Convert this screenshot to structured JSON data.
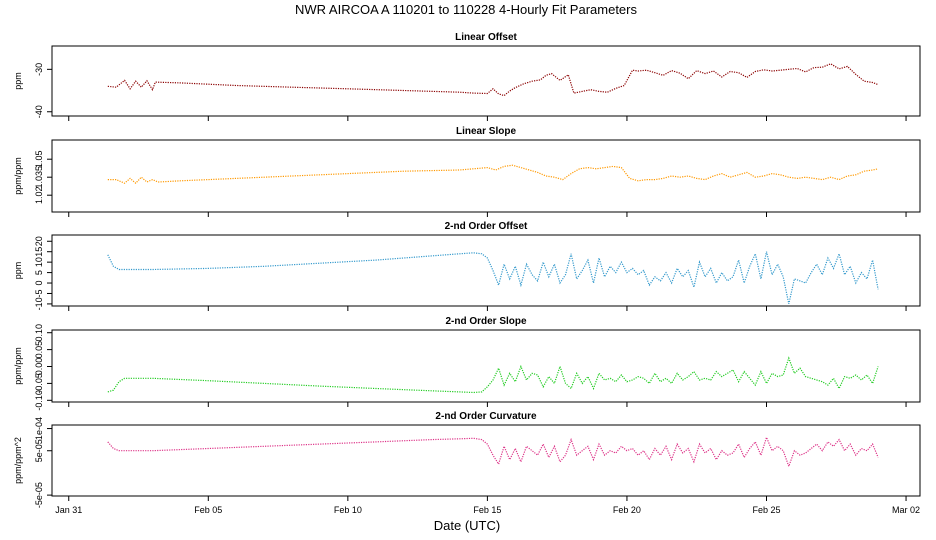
{
  "page": {
    "title": "NWR   AIRCOA A   110201 to 110228   4-Hourly Fit Parameters",
    "xlabel": "Date (UTC)"
  },
  "chart_data": {
    "type": "line",
    "x_axis": {
      "tick_labels": [
        "Jan 31",
        "Feb 05",
        "Feb 10",
        "Feb 15",
        "Feb 20",
        "Feb 25",
        "Mar 02"
      ],
      "tick_days": [
        0,
        5,
        10,
        15,
        20,
        25,
        30
      ],
      "xlim_days": [
        -0.6,
        30.5
      ],
      "unit": "days since Jan 31 00:00 UTC"
    },
    "panels": [
      {
        "title": "Linear Offset",
        "ylabel": "ppm",
        "color": "#8b0000",
        "ylim": [
          -41,
          -24.5
        ],
        "y_ticks": [
          -40,
          -30
        ],
        "y_tick_labels": [
          "-40",
          "-30"
        ],
        "x": [
          1.4,
          1.7,
          2.0,
          2.2,
          2.4,
          2.6,
          2.8,
          3.0,
          3.1,
          4.0,
          6.0,
          8.0,
          10.0,
          12.0,
          14.0,
          14.5,
          15.0,
          15.2,
          15.4,
          15.6,
          15.8,
          16.0,
          16.3,
          16.6,
          16.9,
          17.1,
          17.3,
          17.6,
          17.9,
          18.1,
          18.4,
          18.7,
          19.0,
          19.3,
          19.6,
          19.9,
          20.2,
          20.4,
          20.7,
          21.0,
          21.3,
          21.6,
          21.9,
          22.2,
          22.5,
          22.8,
          23.1,
          23.4,
          23.7,
          24.0,
          24.3,
          24.6,
          24.9,
          25.2,
          25.5,
          25.8,
          26.1,
          26.4,
          26.7,
          27.0,
          27.3,
          27.6,
          27.9,
          28.2,
          28.5,
          28.8,
          29.0
        ],
        "y": [
          -34.0,
          -34.2,
          -32.6,
          -34.6,
          -32.8,
          -34.2,
          -32.7,
          -34.8,
          -33.0,
          -33.2,
          -33.8,
          -34.2,
          -34.6,
          -35.0,
          -35.4,
          -35.6,
          -35.7,
          -34.6,
          -35.8,
          -36.2,
          -35.1,
          -34.3,
          -33.4,
          -32.8,
          -32.5,
          -31.4,
          -31.0,
          -32.6,
          -31.3,
          -35.6,
          -35.2,
          -34.8,
          -35.2,
          -35.4,
          -34.5,
          -33.8,
          -30.2,
          -30.4,
          -30.2,
          -30.8,
          -31.4,
          -30.3,
          -30.9,
          -32.2,
          -30.3,
          -31.0,
          -30.4,
          -31.8,
          -30.5,
          -30.8,
          -31.9,
          -30.5,
          -30.1,
          -30.4,
          -30.2,
          -30.0,
          -29.8,
          -30.6,
          -29.6,
          -29.5,
          -28.7,
          -29.9,
          -29.3,
          -31.2,
          -32.8,
          -33.1,
          -33.6
        ]
      },
      {
        "title": "Linear Slope",
        "ylabel": "ppm/ppm",
        "color": "#ff9900",
        "ylim": [
          1.006,
          1.066
        ],
        "y_ticks": [
          1.02,
          1.035,
          1.05
        ],
        "y_tick_labels": [
          "1.02",
          "1.035",
          "1.05"
        ],
        "x": [
          1.4,
          1.7,
          2.0,
          2.2,
          2.4,
          2.6,
          2.8,
          3.0,
          3.2,
          4.0,
          6.0,
          8.0,
          10.0,
          12.0,
          14.0,
          14.5,
          15.0,
          15.3,
          15.6,
          15.9,
          16.2,
          16.5,
          16.8,
          17.1,
          17.4,
          17.7,
          18.0,
          18.3,
          18.6,
          18.9,
          19.2,
          19.5,
          19.8,
          20.1,
          20.4,
          20.7,
          21.0,
          21.3,
          21.6,
          21.9,
          22.2,
          22.5,
          22.8,
          23.1,
          23.4,
          23.7,
          24.0,
          24.3,
          24.6,
          24.9,
          25.2,
          25.5,
          25.8,
          26.1,
          26.4,
          26.7,
          27.0,
          27.3,
          27.6,
          27.9,
          28.2,
          28.5,
          28.8,
          29.0
        ],
        "y": [
          1.033,
          1.033,
          1.03,
          1.034,
          1.03,
          1.035,
          1.031,
          1.033,
          1.031,
          1.032,
          1.034,
          1.036,
          1.038,
          1.04,
          1.041,
          1.042,
          1.043,
          1.041,
          1.044,
          1.045,
          1.043,
          1.041,
          1.039,
          1.036,
          1.035,
          1.033,
          1.038,
          1.042,
          1.043,
          1.042,
          1.043,
          1.044,
          1.043,
          1.034,
          1.032,
          1.033,
          1.033,
          1.034,
          1.036,
          1.035,
          1.036,
          1.034,
          1.033,
          1.036,
          1.038,
          1.035,
          1.037,
          1.039,
          1.035,
          1.036,
          1.038,
          1.037,
          1.035,
          1.034,
          1.035,
          1.034,
          1.033,
          1.035,
          1.033,
          1.036,
          1.037,
          1.04,
          1.041,
          1.042
        ]
      },
      {
        "title": "2-nd Order Offset",
        "ylabel": "ppm",
        "color": "#3399cc",
        "ylim": [
          -11,
          23
        ],
        "y_ticks": [
          -10,
          -5,
          0,
          5,
          10,
          15,
          20
        ],
        "y_tick_labels": [
          "-10",
          "-5",
          "0",
          "5",
          "10",
          "15",
          "20"
        ],
        "x": [
          1.4,
          1.6,
          1.8,
          2.0,
          3.0,
          5.0,
          7.0,
          9.0,
          11.0,
          13.0,
          14.0,
          14.5,
          14.8,
          15.0,
          15.2,
          15.4,
          15.6,
          15.8,
          16.0,
          16.2,
          16.4,
          16.6,
          16.8,
          17.0,
          17.2,
          17.4,
          17.6,
          17.8,
          18.0,
          18.2,
          18.4,
          18.6,
          18.8,
          19.0,
          19.2,
          19.4,
          19.6,
          19.8,
          20.0,
          20.2,
          20.4,
          20.6,
          20.8,
          21.0,
          21.2,
          21.4,
          21.6,
          21.8,
          22.0,
          22.2,
          22.4,
          22.6,
          22.8,
          23.0,
          23.2,
          23.4,
          23.6,
          23.8,
          24.0,
          24.2,
          24.4,
          24.6,
          24.8,
          25.0,
          25.2,
          25.4,
          25.6,
          25.8,
          26.0,
          26.2,
          26.4,
          26.6,
          26.8,
          27.0,
          27.2,
          27.4,
          27.6,
          27.8,
          28.0,
          28.2,
          28.4,
          28.6,
          28.8,
          29.0
        ],
        "y": [
          13.5,
          8.0,
          6.5,
          6.5,
          6.5,
          7.0,
          8.0,
          9.5,
          11.0,
          13.0,
          14.0,
          14.5,
          14.0,
          12.0,
          6.0,
          -1.0,
          9.0,
          2.0,
          8.0,
          -1.0,
          9.0,
          4.0,
          1.0,
          10.0,
          3.0,
          9.0,
          0.0,
          4.0,
          14.0,
          2.0,
          6.0,
          11.0,
          0.0,
          12.0,
          3.0,
          8.0,
          5.0,
          10.0,
          5.0,
          7.0,
          4.0,
          6.0,
          -1.0,
          3.0,
          1.0,
          5.0,
          0.0,
          7.0,
          3.0,
          6.0,
          -2.0,
          10.0,
          3.0,
          7.0,
          0.0,
          5.0,
          1.0,
          3.0,
          11.0,
          0.0,
          8.0,
          14.0,
          2.0,
          15.0,
          4.0,
          9.0,
          3.0,
          -10.0,
          2.0,
          1.0,
          0.0,
          5.0,
          9.0,
          4.0,
          12.0,
          7.0,
          14.0,
          4.0,
          8.0,
          0.0,
          5.0,
          2.0,
          11.0,
          -3.0
        ]
      },
      {
        "title": "2-nd Order Slope",
        "ylabel": "ppm/ppm",
        "color": "#22cc22",
        "ylim": [
          -0.105,
          0.108
        ],
        "y_ticks": [
          -0.1,
          -0.05,
          0.0,
          0.05,
          0.1
        ],
        "y_tick_labels": [
          "-0.10",
          "-0.05",
          "0.00",
          "0.05",
          "0.10"
        ],
        "x": [
          1.4,
          1.6,
          1.8,
          2.0,
          3.0,
          5.0,
          7.0,
          9.0,
          11.0,
          13.0,
          14.0,
          14.5,
          14.8,
          15.0,
          15.2,
          15.4,
          15.6,
          15.8,
          16.0,
          16.2,
          16.4,
          16.6,
          16.8,
          17.0,
          17.2,
          17.4,
          17.6,
          17.8,
          18.0,
          18.2,
          18.4,
          18.6,
          18.8,
          19.0,
          19.2,
          19.4,
          19.6,
          19.8,
          20.0,
          20.2,
          20.4,
          20.6,
          20.8,
          21.0,
          21.2,
          21.4,
          21.6,
          21.8,
          22.0,
          22.2,
          22.4,
          22.6,
          22.8,
          23.0,
          23.2,
          23.4,
          23.6,
          23.8,
          24.0,
          24.2,
          24.4,
          24.6,
          24.8,
          25.0,
          25.2,
          25.4,
          25.6,
          25.8,
          26.0,
          26.2,
          26.4,
          26.6,
          26.8,
          27.0,
          27.2,
          27.4,
          27.6,
          27.8,
          28.0,
          28.2,
          28.4,
          28.6,
          28.8,
          29.0
        ],
        "y": [
          -0.075,
          -0.07,
          -0.045,
          -0.035,
          -0.035,
          -0.042,
          -0.05,
          -0.058,
          -0.065,
          -0.072,
          -0.075,
          -0.077,
          -0.075,
          -0.06,
          -0.04,
          -0.005,
          -0.055,
          -0.02,
          -0.045,
          0.0,
          -0.04,
          -0.02,
          -0.025,
          -0.06,
          -0.03,
          -0.05,
          0.0,
          -0.05,
          -0.065,
          -0.02,
          -0.05,
          -0.03,
          -0.065,
          -0.02,
          -0.04,
          -0.035,
          -0.045,
          -0.025,
          -0.045,
          -0.04,
          -0.03,
          -0.035,
          -0.05,
          -0.02,
          -0.045,
          -0.035,
          -0.05,
          -0.02,
          -0.04,
          -0.03,
          -0.015,
          -0.04,
          -0.035,
          -0.04,
          -0.015,
          -0.03,
          -0.02,
          -0.01,
          -0.045,
          -0.015,
          -0.035,
          -0.055,
          -0.015,
          -0.05,
          -0.02,
          -0.03,
          -0.025,
          0.025,
          -0.02,
          -0.005,
          -0.03,
          -0.035,
          -0.04,
          -0.045,
          -0.055,
          -0.035,
          -0.065,
          -0.03,
          -0.035,
          -0.025,
          -0.04,
          -0.025,
          -0.05,
          0.0
        ]
      },
      {
        "title": "2-nd Order Curvature",
        "ylabel": "ppm/ppm^2",
        "color": "#dd3388",
        "ylim": [
          -5.2e-05,
          0.000108
        ],
        "y_ticks": [
          -5e-05,
          5e-05,
          0.0001
        ],
        "y_tick_labels": [
          "-5e-05",
          "5e-05",
          "1e-04"
        ],
        "x": [
          1.4,
          1.6,
          1.8,
          2.0,
          3.0,
          5.0,
          7.0,
          9.0,
          11.0,
          13.0,
          14.0,
          14.5,
          14.8,
          15.0,
          15.2,
          15.4,
          15.6,
          15.8,
          16.0,
          16.2,
          16.4,
          16.6,
          16.8,
          17.0,
          17.2,
          17.4,
          17.6,
          17.8,
          18.0,
          18.2,
          18.4,
          18.6,
          18.8,
          19.0,
          19.2,
          19.4,
          19.6,
          19.8,
          20.0,
          20.2,
          20.4,
          20.6,
          20.8,
          21.0,
          21.2,
          21.4,
          21.6,
          21.8,
          22.0,
          22.2,
          22.4,
          22.6,
          22.8,
          23.0,
          23.2,
          23.4,
          23.6,
          23.8,
          24.0,
          24.2,
          24.4,
          24.6,
          24.8,
          25.0,
          25.2,
          25.4,
          25.6,
          25.8,
          26.0,
          26.2,
          26.4,
          26.6,
          26.8,
          27.0,
          27.2,
          27.4,
          27.6,
          27.8,
          28.0,
          28.2,
          28.4,
          28.6,
          28.8,
          29.0
        ],
        "y": [
          7e-05,
          5.5e-05,
          5e-05,
          5e-05,
          5e-05,
          5.5e-05,
          6e-05,
          6.5e-05,
          7e-05,
          7.5e-05,
          7.7e-05,
          7.8e-05,
          7.5e-05,
          6.5e-05,
          4e-05,
          2e-05,
          6e-05,
          3e-05,
          5.5e-05,
          2.5e-05,
          6e-05,
          5e-05,
          4e-05,
          6.5e-05,
          3.5e-05,
          6e-05,
          2.5e-05,
          4e-05,
          7.5e-05,
          4e-05,
          5e-05,
          6e-05,
          3e-05,
          6.5e-05,
          4e-05,
          5e-05,
          4.5e-05,
          6e-05,
          5e-05,
          5.5e-05,
          4e-05,
          5e-05,
          3e-05,
          5.5e-05,
          4e-05,
          6e-05,
          3e-05,
          6.5e-05,
          4.5e-05,
          5.5e-05,
          2.5e-05,
          6.5e-05,
          4.5e-05,
          5.5e-05,
          3e-05,
          5e-05,
          4e-05,
          4.5e-05,
          6.5e-05,
          3.5e-05,
          5.5e-05,
          7e-05,
          4e-05,
          8e-05,
          5e-05,
          6e-05,
          5e-05,
          1.5e-05,
          5e-05,
          4e-05,
          4.5e-05,
          5.5e-05,
          6.5e-05,
          5e-05,
          7e-05,
          6e-05,
          7.5e-05,
          5e-05,
          6.5e-05,
          4e-05,
          5.5e-05,
          5e-05,
          6.5e-05,
          3.5e-05
        ]
      }
    ]
  }
}
